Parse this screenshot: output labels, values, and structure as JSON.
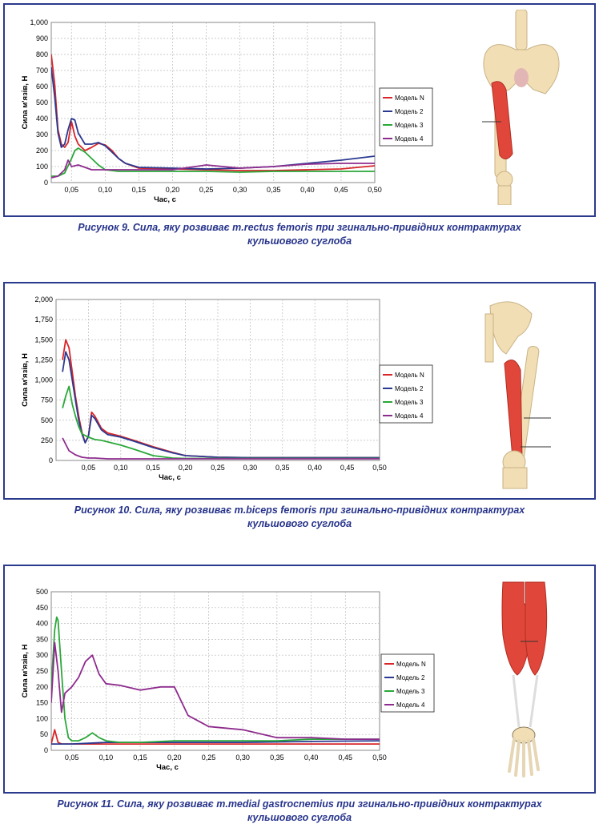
{
  "captions": [
    {
      "line1": "Рисунок 9. Сила, яку розвиває m.rectus femoris при згинально-привідних контрактурах",
      "line2": "кульшового суглоба"
    },
    {
      "line1": "Рисунок 10. Сила, яку розвиває m.biceps femoris при згинально-привідних контрактурах",
      "line2": "кульшового суглоба"
    },
    {
      "line1": "Рисунок 11. Сила, яку розвиває m.medial gastrocnemius при згинально-привідних контрактурах",
      "line2": "кульшового суглоба"
    }
  ],
  "colors": {
    "model_n": "#d8262a",
    "model_2": "#2b3990",
    "model_3": "#2aa838",
    "model_4": "#8e2c8e",
    "frame": "#2a3a8c",
    "caption": "#27348b",
    "muscle": "#e0473a",
    "bone": "#f1deb4"
  },
  "chart_data": [
    {
      "type": "line",
      "xlabel": "Час, с",
      "ylabel": "Сила м'язів, Н",
      "xlim": [
        0.02,
        0.5
      ],
      "ylim": [
        0,
        1000
      ],
      "grid": true,
      "legend_position": "right",
      "x_ticks": [
        "0,05",
        "0,10",
        "0,15",
        "0,20",
        "0,25",
        "0,30",
        "0,35",
        "0,40",
        "0,45",
        "0,50"
      ],
      "y_ticks": [
        "0",
        "100",
        "200",
        "300",
        "400",
        "500",
        "600",
        "700",
        "800",
        "900",
        "1,000"
      ],
      "series": [
        {
          "name": "Модель N",
          "x": [
            0.02,
            0.025,
            0.03,
            0.035,
            0.04,
            0.045,
            0.05,
            0.055,
            0.06,
            0.07,
            0.08,
            0.09,
            0.1,
            0.11,
            0.12,
            0.13,
            0.15,
            0.2,
            0.25,
            0.3,
            0.35,
            0.4,
            0.45,
            0.5
          ],
          "y": [
            800,
            620,
            330,
            240,
            220,
            250,
            380,
            290,
            240,
            200,
            220,
            245,
            235,
            200,
            150,
            120,
            90,
            85,
            80,
            75,
            75,
            80,
            85,
            105
          ]
        },
        {
          "name": "Модель 2",
          "x": [
            0.02,
            0.025,
            0.03,
            0.035,
            0.04,
            0.045,
            0.05,
            0.055,
            0.06,
            0.07,
            0.08,
            0.09,
            0.1,
            0.11,
            0.12,
            0.13,
            0.15,
            0.2,
            0.25,
            0.3,
            0.35,
            0.4,
            0.45,
            0.5
          ],
          "y": [
            720,
            540,
            310,
            220,
            240,
            330,
            400,
            390,
            310,
            240,
            240,
            250,
            230,
            190,
            150,
            120,
            95,
            90,
            85,
            90,
            100,
            120,
            140,
            165
          ]
        },
        {
          "name": "Модель 3",
          "x": [
            0.02,
            0.03,
            0.04,
            0.05,
            0.055,
            0.06,
            0.07,
            0.08,
            0.09,
            0.1,
            0.12,
            0.15,
            0.2,
            0.25,
            0.3,
            0.35,
            0.4,
            0.45,
            0.5
          ],
          "y": [
            40,
            40,
            60,
            150,
            200,
            215,
            190,
            150,
            110,
            80,
            70,
            70,
            70,
            70,
            65,
            70,
            70,
            70,
            70
          ]
        },
        {
          "name": "Модель 4",
          "x": [
            0.02,
            0.03,
            0.04,
            0.045,
            0.05,
            0.06,
            0.08,
            0.1,
            0.12,
            0.15,
            0.2,
            0.25,
            0.3,
            0.35,
            0.4,
            0.45,
            0.5
          ],
          "y": [
            30,
            40,
            80,
            140,
            100,
            110,
            80,
            80,
            80,
            80,
            80,
            110,
            90,
            100,
            115,
            120,
            120
          ]
        }
      ]
    },
    {
      "type": "line",
      "xlabel": "Час, с",
      "ylabel": "Сила м'язів, Н",
      "xlim": [
        0.0,
        0.5
      ],
      "ylim": [
        0,
        2000
      ],
      "grid": true,
      "legend_position": "right",
      "x_ticks": [
        "0,05",
        "0,10",
        "0,15",
        "0,20",
        "0,25",
        "0,30",
        "0,35",
        "0,40",
        "0,45",
        "0,50"
      ],
      "y_ticks": [
        "0",
        "250",
        "500",
        "750",
        "1,000",
        "1,250",
        "1,500",
        "1,750",
        "2,000"
      ],
      "series": [
        {
          "name": "Модель N",
          "x": [
            0.01,
            0.015,
            0.02,
            0.025,
            0.03,
            0.035,
            0.04,
            0.045,
            0.05,
            0.055,
            0.06,
            0.07,
            0.08,
            0.1,
            0.12,
            0.15,
            0.18,
            0.2,
            0.25,
            0.3,
            0.4,
            0.5
          ],
          "y": [
            1250,
            1500,
            1400,
            1100,
            800,
            550,
            350,
            220,
            300,
            600,
            550,
            400,
            340,
            300,
            250,
            170,
            100,
            60,
            40,
            35,
            35,
            35
          ]
        },
        {
          "name": "Модель 2",
          "x": [
            0.01,
            0.015,
            0.02,
            0.025,
            0.03,
            0.035,
            0.04,
            0.045,
            0.05,
            0.055,
            0.06,
            0.07,
            0.08,
            0.1,
            0.12,
            0.15,
            0.18,
            0.2,
            0.25,
            0.3,
            0.4,
            0.5
          ],
          "y": [
            1100,
            1350,
            1250,
            1000,
            750,
            500,
            330,
            220,
            300,
            560,
            520,
            380,
            320,
            290,
            240,
            160,
            95,
            60,
            40,
            35,
            35,
            35
          ]
        },
        {
          "name": "Модель 3",
          "x": [
            0.01,
            0.015,
            0.02,
            0.025,
            0.03,
            0.035,
            0.04,
            0.05,
            0.06,
            0.07,
            0.08,
            0.1,
            0.12,
            0.15,
            0.18,
            0.2,
            0.25,
            0.3,
            0.4,
            0.5
          ],
          "y": [
            650,
            800,
            920,
            700,
            550,
            420,
            330,
            290,
            260,
            250,
            230,
            190,
            140,
            60,
            30,
            25,
            25,
            25,
            25,
            25
          ]
        },
        {
          "name": "Модель 4",
          "x": [
            0.01,
            0.015,
            0.02,
            0.03,
            0.04,
            0.05,
            0.06,
            0.08,
            0.1,
            0.15,
            0.2,
            0.3,
            0.4,
            0.5
          ],
          "y": [
            280,
            200,
            120,
            70,
            40,
            30,
            30,
            20,
            20,
            20,
            20,
            20,
            20,
            20
          ]
        }
      ]
    },
    {
      "type": "line",
      "xlabel": "Час, с",
      "ylabel": "Сила м'язів, Н",
      "xlim": [
        0.02,
        0.5
      ],
      "ylim": [
        0,
        500
      ],
      "grid": true,
      "legend_position": "right",
      "x_ticks": [
        "0,05",
        "0,10",
        "0,15",
        "0,20",
        "0,25",
        "0,30",
        "0,35",
        "0,40",
        "0,45",
        "0,50"
      ],
      "y_ticks": [
        "0",
        "50",
        "100",
        "150",
        "200",
        "250",
        "300",
        "350",
        "400",
        "450",
        "500"
      ],
      "series": [
        {
          "name": "Модель N",
          "x": [
            0.02,
            0.025,
            0.03,
            0.035,
            0.04,
            0.05,
            0.1,
            0.2,
            0.3,
            0.4,
            0.5
          ],
          "y": [
            20,
            65,
            25,
            20,
            20,
            20,
            20,
            20,
            20,
            20,
            20
          ]
        },
        {
          "name": "Модель 2",
          "x": [
            0.02,
            0.03,
            0.04,
            0.05,
            0.1,
            0.2,
            0.3,
            0.4,
            0.5
          ],
          "y": [
            20,
            20,
            20,
            20,
            25,
            25,
            25,
            28,
            30
          ]
        },
        {
          "name": "Модель 3",
          "x": [
            0.02,
            0.025,
            0.028,
            0.03,
            0.035,
            0.04,
            0.045,
            0.05,
            0.06,
            0.07,
            0.08,
            0.09,
            0.1,
            0.12,
            0.15,
            0.2,
            0.25,
            0.3,
            0.35,
            0.4,
            0.45,
            0.5
          ],
          "y": [
            200,
            380,
            420,
            410,
            250,
            100,
            40,
            30,
            30,
            40,
            55,
            40,
            30,
            25,
            25,
            30,
            30,
            30,
            30,
            35,
            35,
            35
          ]
        },
        {
          "name": "Модель 4",
          "x": [
            0.02,
            0.025,
            0.03,
            0.035,
            0.04,
            0.05,
            0.06,
            0.07,
            0.08,
            0.09,
            0.1,
            0.12,
            0.15,
            0.18,
            0.2,
            0.22,
            0.25,
            0.3,
            0.35,
            0.4,
            0.45,
            0.5
          ],
          "y": [
            150,
            340,
            250,
            120,
            180,
            200,
            230,
            280,
            300,
            240,
            210,
            205,
            190,
            200,
            200,
            110,
            75,
            65,
            40,
            40,
            35,
            35
          ]
        }
      ]
    }
  ]
}
